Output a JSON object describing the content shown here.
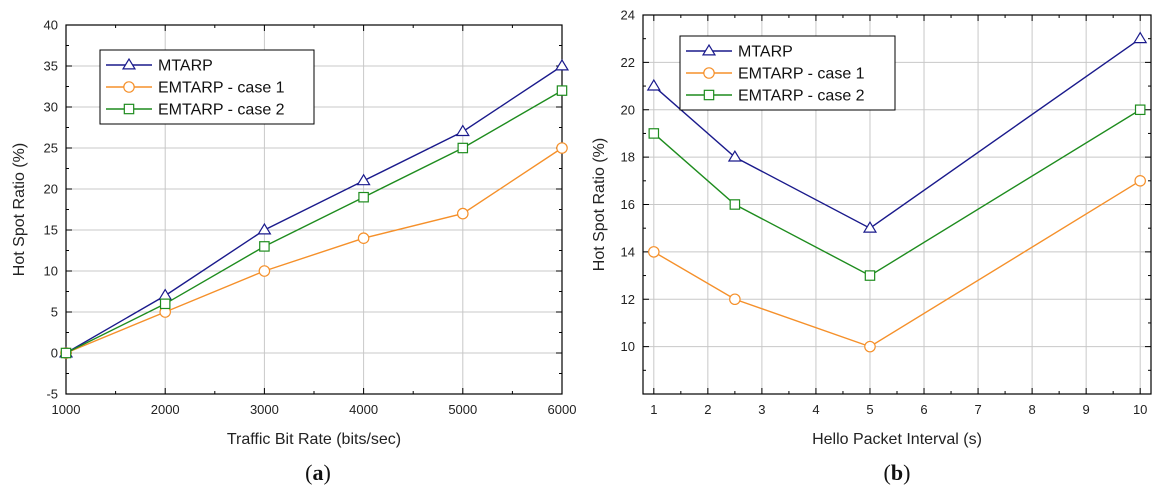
{
  "colors": {
    "MTARP": "#1a1a8c",
    "EMTARP - case 1": "#f5902a",
    "EMTARP - case 2": "#1e8c1e"
  },
  "chart_data": [
    {
      "type": "line",
      "panel_label": "(a)",
      "xlabel": "Traffic Bit Rate (bits/sec)",
      "ylabel": "Hot Spot Ratio (%)",
      "xlim": [
        1000,
        6000
      ],
      "ylim": [
        -5,
        40
      ],
      "xticks": [
        1000,
        2000,
        3000,
        4000,
        5000,
        6000
      ],
      "yticks": [
        -5,
        0,
        5,
        10,
        15,
        20,
        25,
        30,
        35,
        40
      ],
      "xminor": [
        1500,
        2500,
        3500,
        4500,
        5500
      ],
      "yminor": [
        -2.5,
        2.5,
        7.5,
        12.5,
        17.5,
        22.5,
        27.5,
        32.5,
        37.5
      ],
      "grid": true,
      "legend_position": "top-left",
      "x": [
        1000,
        2000,
        3000,
        4000,
        5000,
        6000
      ],
      "series": [
        {
          "name": "MTARP",
          "marker": "triangle",
          "values": [
            0,
            7,
            15,
            21,
            27,
            35
          ]
        },
        {
          "name": "EMTARP - case 1",
          "marker": "circle",
          "values": [
            0,
            5,
            10,
            14,
            17,
            25
          ]
        },
        {
          "name": "EMTARP - case 2",
          "marker": "square",
          "values": [
            0,
            6,
            13,
            19,
            25,
            32
          ]
        }
      ]
    },
    {
      "type": "line",
      "panel_label": "(b)",
      "xlabel": "Hello Packet Interval (s)",
      "ylabel": "Hot Spot Ratio (%)",
      "xlim": [
        0.8,
        10.2
      ],
      "ylim": [
        8,
        24
      ],
      "xticks": [
        1,
        2,
        3,
        4,
        5,
        6,
        7,
        8,
        9,
        10
      ],
      "yticks": [
        10,
        12,
        14,
        16,
        18,
        20,
        22,
        24
      ],
      "xminor": [
        1.5,
        2.5,
        3.5,
        4.5,
        5.5,
        6.5,
        7.5,
        8.5,
        9.5
      ],
      "yminor": [
        9,
        11,
        13,
        15,
        17,
        19,
        21,
        23
      ],
      "grid": true,
      "legend_position": "top-left",
      "x": [
        1,
        2.5,
        5,
        10
      ],
      "series": [
        {
          "name": "MTARP",
          "marker": "triangle",
          "values": [
            21,
            18,
            15,
            23
          ]
        },
        {
          "name": "EMTARP - case 1",
          "marker": "circle",
          "values": [
            14,
            12,
            10,
            17
          ]
        },
        {
          "name": "EMTARP - case 2",
          "marker": "square",
          "values": [
            19,
            16,
            13,
            20
          ]
        }
      ]
    }
  ]
}
